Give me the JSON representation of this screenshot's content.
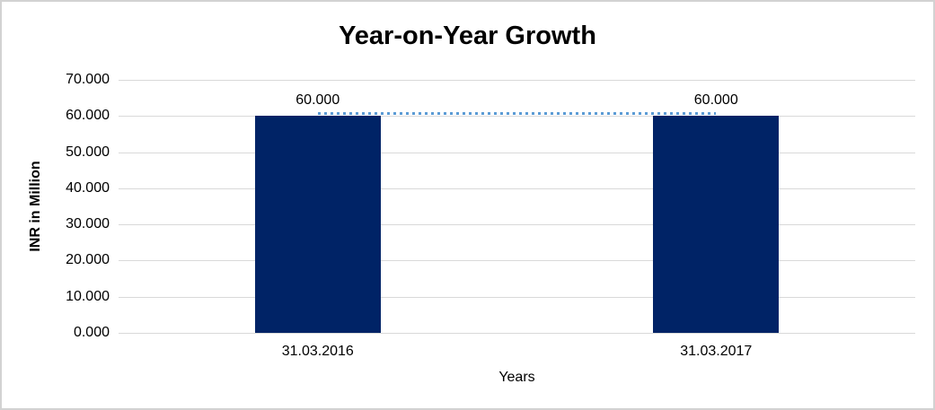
{
  "chart_data": {
    "type": "bar",
    "title": "Year-on-Year Growth",
    "xlabel": "Years",
    "ylabel": "INR in Million",
    "categories": [
      "31.03.2016",
      "31.03.2017"
    ],
    "values": [
      60.0,
      60.0
    ],
    "data_labels": [
      "60.000",
      "60.000"
    ],
    "ylim": [
      0,
      70
    ],
    "y_tick_step": 10,
    "y_tick_labels": [
      "0.000",
      "10.000",
      "20.000",
      "30.000",
      "40.000",
      "50.000",
      "60.000",
      "70.000"
    ],
    "grid": "horizontal",
    "legend": "none",
    "connector_line": {
      "style": "dotted",
      "at_value": 60,
      "between": [
        "31.03.2016",
        "31.03.2017"
      ]
    }
  },
  "colors": {
    "bar": "#002366",
    "connector": "#5B9BD5",
    "gridline": "#D9D9D9",
    "text": "#000000",
    "frame_border": "#D2D2D2",
    "background": "#FFFFFF"
  }
}
